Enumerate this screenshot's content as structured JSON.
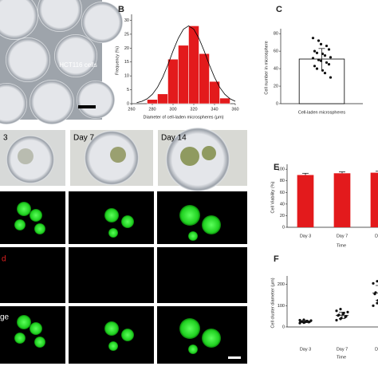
{
  "images": {
    "a_label": "HCT116 cells",
    "columns": [
      "3",
      "Day 7",
      "Day 14"
    ],
    "rows": [
      "d",
      "ge"
    ]
  },
  "chart_data": [
    {
      "type": "histogram",
      "label": "B",
      "ylabel": "Frequency (%)",
      "xlabel": "Diameter of cell-laden microspheres (μm)",
      "bins": [
        275,
        285,
        295,
        305,
        315,
        325,
        335,
        345,
        355
      ],
      "values": [
        1.5,
        3.5,
        16,
        21,
        28,
        18,
        8,
        2
      ],
      "color": "#e31a1c",
      "curve": {
        "x": [
          265,
          270,
          275,
          280,
          285,
          290,
          295,
          300,
          305,
          310,
          315,
          320,
          325,
          330,
          335,
          340,
          345,
          350,
          355,
          360
        ],
        "values": [
          0.37,
          0.85,
          1.76,
          3.35,
          5.9,
          9.5,
          14.0,
          19.0,
          23.5,
          26.8,
          28,
          26.8,
          23.5,
          19.0,
          14.0,
          9.5,
          5.9,
          3.35,
          1.76,
          0.85
        ]
      },
      "xlim": [
        260,
        360
      ],
      "xticks": [
        260,
        280,
        300,
        320,
        340,
        360
      ],
      "ylim": [
        0,
        31
      ],
      "yticks": [
        0,
        5,
        10,
        15,
        20,
        25,
        30
      ]
    },
    {
      "type": "bar",
      "label": "C",
      "ylabel": "Cell number in microsphere",
      "categories": [
        "Cell-laden microspheres"
      ],
      "values": [
        51
      ],
      "errors": [
        12
      ],
      "color": "#ffffff",
      "points": [
        [
          75,
          72,
          68,
          66,
          62,
          60,
          58,
          57,
          55,
          53,
          52,
          50,
          49,
          47,
          45,
          43,
          40,
          38,
          35,
          30
        ]
      ],
      "ylim": [
        0,
        82
      ],
      "yticks": [
        0,
        20,
        40,
        60,
        80
      ]
    },
    {
      "type": "bar",
      "label": "E",
      "ylabel": "Cell Viability (%)",
      "xlabel": "Time",
      "categories": [
        "Day 3",
        "Day 7",
        "Day"
      ],
      "values": [
        90,
        93,
        94
      ],
      "errors": [
        3,
        2.5,
        2.5
      ],
      "color": "#e31a1c",
      "ylim": [
        0,
        103
      ],
      "yticks": [
        0,
        20,
        40,
        60,
        80,
        100
      ]
    },
    {
      "type": "dot",
      "label": "F",
      "ylabel": "Cell cluster diameter (μm)",
      "xlabel": "Time",
      "categories": [
        "Day 3",
        "Day 7",
        "Day"
      ],
      "values": [
        25,
        55,
        160
      ],
      "errors": [
        5,
        15,
        35
      ],
      "color": "#111111",
      "points": [
        [
          18,
          20,
          22,
          23,
          24,
          25,
          26,
          27,
          28,
          30,
          32,
          34
        ],
        [
          32,
          38,
          42,
          47,
          50,
          54,
          57,
          60,
          64,
          70,
          76,
          84
        ],
        [
          100,
          112,
          125,
          135,
          145,
          155,
          162,
          170,
          180,
          192,
          205,
          215
        ]
      ],
      "ylim": [
        0,
        225
      ],
      "yticks": [
        0,
        100,
        200
      ]
    }
  ]
}
